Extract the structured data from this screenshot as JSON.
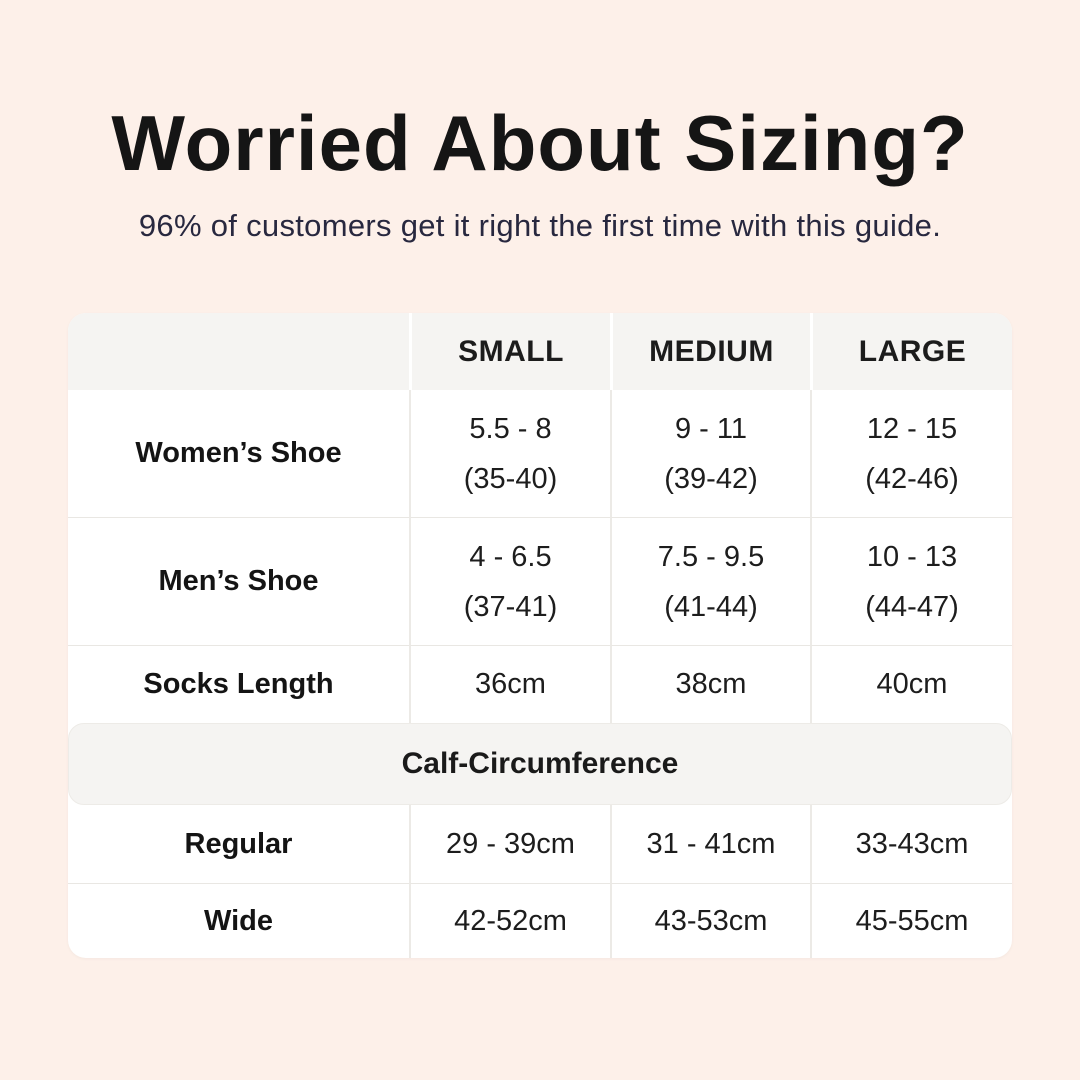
{
  "colors": {
    "background": "#fdf0e9",
    "card": "#ffffff",
    "header_band": "#f5f4f2",
    "divider": "#e9e7e3",
    "title_text": "#151515",
    "subtitle_text": "#28283f",
    "body_text": "#1d1d1d"
  },
  "header": {
    "title": "Worried About Sizing?",
    "subtitle": "96% of customers get it right the first time with this guide."
  },
  "table": {
    "column_headers": [
      "SMALL",
      "MEDIUM",
      "LARGE"
    ],
    "shoe_rows": [
      {
        "label": "Women’s Shoe",
        "cells": [
          {
            "line1": "5.5 - 8",
            "line2": "(35-40)"
          },
          {
            "line1": "9 - 11",
            "line2": "(39-42)"
          },
          {
            "line1": "12 - 15",
            "line2": "(42-46)"
          }
        ]
      },
      {
        "label": "Men’s Shoe",
        "cells": [
          {
            "line1": "4 - 6.5",
            "line2": "(37-41)"
          },
          {
            "line1": "7.5 - 9.5",
            "line2": "(41-44)"
          },
          {
            "line1": "10 - 13",
            "line2": "(44-47)"
          }
        ]
      },
      {
        "label": "Socks Length",
        "cells": [
          {
            "line1": "36cm"
          },
          {
            "line1": "38cm"
          },
          {
            "line1": "40cm"
          }
        ]
      }
    ],
    "section_header": "Calf-Circumference",
    "calf_rows": [
      {
        "label": "Regular",
        "cells": [
          "29 - 39cm",
          "31 - 41cm",
          "33-43cm"
        ]
      },
      {
        "label": "Wide",
        "cells": [
          "42-52cm",
          "43-53cm",
          "45-55cm"
        ]
      }
    ]
  },
  "chart_data": {
    "type": "table",
    "title": "Worried About Sizing?",
    "subtitle": "96% of customers get it right the first time with this guide.",
    "columns": [
      "",
      "SMALL",
      "MEDIUM",
      "LARGE"
    ],
    "rows": [
      [
        "Women’s Shoe",
        "5.5 - 8 (35-40)",
        "9 - 11 (39-42)",
        "12 - 15 (42-46)"
      ],
      [
        "Men’s Shoe",
        "4 - 6.5 (37-41)",
        "7.5 - 9.5 (41-44)",
        "10 - 13 (44-47)"
      ],
      [
        "Socks Length",
        "36cm",
        "38cm",
        "40cm"
      ],
      [
        "Calf-Circumference",
        "",
        "",
        ""
      ],
      [
        "Regular",
        "29 - 39cm",
        "31 - 41cm",
        "33-43cm"
      ],
      [
        "Wide",
        "42-52cm",
        "43-53cm",
        "45-55cm"
      ]
    ]
  }
}
